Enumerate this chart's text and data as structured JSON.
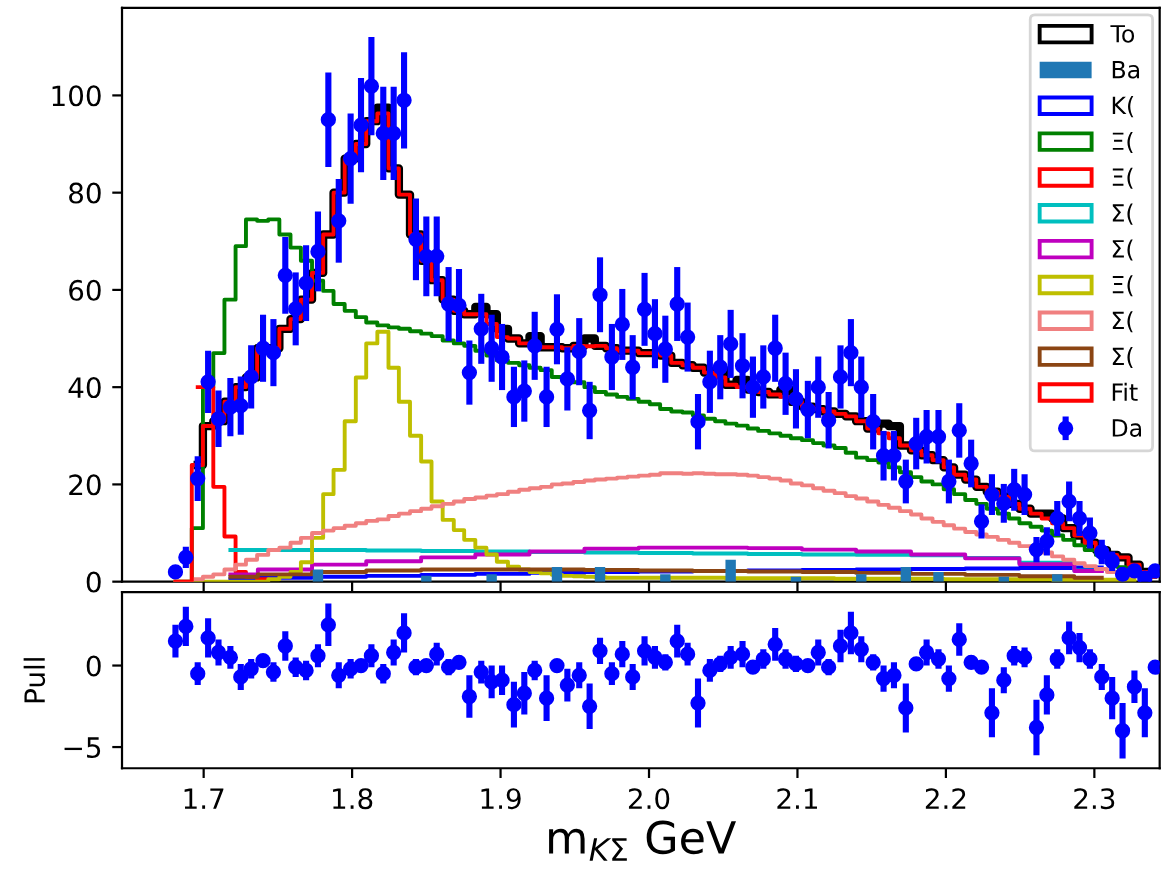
{
  "chart_data": [
    {
      "type": "step",
      "xlim": [
        1.645,
        2.344
      ],
      "ylim": [
        0,
        118
      ],
      "xticks": [
        1.7,
        1.8,
        1.9,
        2.0,
        2.1,
        2.2,
        2.3
      ],
      "yticks": [
        0,
        20,
        40,
        60,
        80,
        100
      ],
      "tick_labels": "y",
      "legend": "top right",
      "x": [
        1.681,
        1.688,
        1.696,
        1.703,
        1.71,
        1.718,
        1.725,
        1.732,
        1.74,
        1.747,
        1.755,
        1.762,
        1.769,
        1.777,
        1.784,
        1.791,
        1.799,
        1.806,
        1.813,
        1.821,
        1.828,
        1.835,
        1.843,
        1.85,
        1.857,
        1.865,
        1.872,
        1.879,
        1.887,
        1.894,
        1.901,
        1.909,
        1.916,
        1.923,
        1.931,
        1.938,
        1.945,
        1.953,
        1.96,
        1.967,
        1.975,
        1.982,
        1.989,
        1.997,
        2.004,
        2.011,
        2.019,
        2.026,
        2.033,
        2.041,
        2.048,
        2.055,
        2.063,
        2.07,
        2.077,
        2.085,
        2.092,
        2.099,
        2.107,
        2.114,
        2.121,
        2.129,
        2.136,
        2.143,
        2.151,
        2.158,
        2.165,
        2.173,
        2.18,
        2.187,
        2.195,
        2.202,
        2.209,
        2.217,
        2.224,
        2.231,
        2.239,
        2.246,
        2.253,
        2.261,
        2.268,
        2.275,
        2.283,
        2.29,
        2.297,
        2.305,
        2.312,
        2.319,
        2.327,
        2.334,
        2.341
      ],
      "series": [
        {
          "name": "To",
          "type": "step",
          "color": "#000000",
          "values": [
            null,
            null,
            24,
            32,
            33,
            37,
            40,
            42,
            48,
            48,
            52,
            54,
            58,
            63.5,
            71.4,
            80,
            87,
            90,
            94.7,
            97.5,
            85,
            79.6,
            71.4,
            66,
            62,
            58,
            55.7,
            55,
            56.5,
            55,
            52,
            50,
            49,
            50.5,
            48.2,
            48.2,
            48,
            48.5,
            50,
            48.5,
            48,
            47.5,
            47.5,
            47,
            47,
            46.5,
            45,
            44.5,
            44,
            43,
            43.5,
            40.5,
            41.5,
            39.5,
            39,
            38.5,
            39.5,
            37,
            36,
            35.5,
            35,
            34.5,
            34,
            33,
            31.5,
            32.5,
            32,
            28,
            27,
            26,
            25,
            23.5,
            22,
            21,
            19.5,
            18.5,
            17.5,
            16,
            15,
            14,
            14,
            13,
            11,
            9.5,
            8,
            6.5,
            5.5,
            5,
            3.5,
            2,
            null
          ]
        },
        {
          "name": "Ba",
          "type": "bar",
          "color": "#1f77b4",
          "x": [
            1.777,
            1.85,
            1.894,
            1.938,
            1.967,
            2.011,
            2.055,
            2.099,
            2.143,
            2.173,
            2.195,
            2.239,
            2.275
          ],
          "values": [
            2.5,
            1.2,
            1.5,
            3,
            3,
            1.5,
            4.5,
            1,
            1.5,
            3,
            2,
            1,
            1.5
          ]
        },
        {
          "name": "K(",
          "type": "step",
          "color": "#0000ff",
          "x": [
            1.718,
            1.755,
            1.791,
            1.828,
            1.865,
            1.901,
            1.938,
            1.975,
            2.011,
            2.048,
            2.085,
            2.121,
            2.158,
            2.195,
            2.231,
            2.268,
            2.305
          ],
          "values": [
            0.5,
            0.8,
            1,
            1.2,
            1.4,
            1.6,
            1.8,
            2,
            2.1,
            2.2,
            2.3,
            2.4,
            2.5,
            2.6,
            2.7,
            2.8,
            2.9
          ]
        },
        {
          "name": "Ξ(",
          "type": "step",
          "color": "#008000",
          "values": [
            0,
            0,
            11,
            40,
            47,
            58,
            69,
            74.5,
            74.2,
            74.5,
            71.4,
            68.7,
            66,
            61.9,
            59.8,
            57.1,
            55.7,
            54.4,
            53.3,
            52.7,
            52.3,
            52,
            51.5,
            51,
            50.5,
            49.6,
            49,
            48.5,
            47.5,
            46.5,
            45.5,
            45,
            44.5,
            44,
            43.5,
            42.1,
            41.5,
            41,
            40,
            39,
            38.5,
            38,
            37.6,
            37,
            36.5,
            35.5,
            35,
            34.8,
            34.2,
            33.5,
            33,
            32.5,
            32.1,
            31.5,
            31,
            30.5,
            30,
            29.5,
            29.1,
            28.5,
            28,
            27.5,
            26.5,
            25.5,
            25,
            24.5,
            23.5,
            22.5,
            21.5,
            20.6,
            20,
            19,
            18,
            16.8,
            16,
            15,
            14,
            13,
            12,
            11.3,
            10.5,
            9.5,
            8.6,
            7.5,
            6.5,
            5.5,
            3.8,
            3,
            2,
            1.5,
            1
          ]
        },
        {
          "name": "Ξ(",
          "type": "step",
          "color": "#ff0000",
          "x": [
            1.696,
            1.703,
            1.71,
            1.718,
            1.725,
            1.732,
            1.74,
            1.747
          ],
          "values": [
            40,
            40,
            19.5,
            9.3,
            2,
            1,
            0.5,
            0.3
          ]
        },
        {
          "name": "Σ(",
          "type": "step",
          "color": "#00bfbf",
          "x": [
            1.718,
            1.755,
            1.791,
            1.828,
            1.865,
            1.901,
            1.938,
            1.975,
            2.011,
            2.048,
            2.085,
            2.121,
            2.158,
            2.195,
            2.231,
            2.268,
            2.305
          ],
          "values": [
            6.5,
            6.5,
            6.5,
            6.4,
            6.3,
            6.2,
            6.1,
            6,
            5.9,
            5.8,
            5.7,
            5.6,
            5.5,
            5.4,
            4.9,
            3.9,
            2.3
          ]
        },
        {
          "name": "Σ(",
          "type": "step",
          "color": "#bf00bf",
          "x": [
            1.718,
            1.755,
            1.791,
            1.828,
            1.865,
            1.901,
            1.938,
            1.975,
            2.011,
            2.048,
            2.085,
            2.121,
            2.158,
            2.195,
            2.231,
            2.268,
            2.305
          ],
          "values": [
            1.5,
            2.5,
            3.5,
            4.2,
            5,
            5.6,
            6.2,
            6.8,
            7,
            7,
            6.9,
            6.6,
            6.2,
            5.6,
            4.8,
            3.6,
            2.2
          ]
        },
        {
          "name": "Ξ(",
          "type": "step",
          "color": "#bfbf00",
          "values": [
            0,
            0,
            0,
            0,
            0,
            0,
            0,
            0,
            0,
            0.5,
            1,
            2,
            4,
            9,
            18,
            23,
            33,
            42,
            49,
            51.4,
            44,
            37,
            30,
            24.7,
            16.5,
            12.7,
            10.6,
            8.6,
            7,
            5.6,
            4.1,
            3.1,
            2.5,
            2,
            1.7,
            1.4,
            1.2,
            1.1,
            1,
            0.9,
            0.8,
            0.8,
            0.8,
            0.8,
            0.8,
            0.8,
            0.8,
            0.8,
            0.8,
            0.8,
            0.8,
            0.7,
            0.7,
            0.7,
            0.7,
            0.7,
            0.7,
            0.7,
            0.7,
            0.7,
            0.7,
            0.6,
            0.6,
            0.6,
            0.6,
            0.6,
            0.6,
            0.6,
            0.6,
            0.6,
            0.6,
            0.5,
            0.5,
            0.5,
            0.5,
            0.5,
            0.5,
            0.5,
            0.5,
            0.5,
            0.5,
            0.4,
            0.4,
            0.4,
            0.4,
            0.4,
            0.4,
            0.4,
            0.4,
            null,
            null
          ]
        },
        {
          "name": "Σ(",
          "type": "step",
          "color": "#f08080",
          "values": [
            0,
            0,
            0.5,
            1,
            1.5,
            2.5,
            3.5,
            4.5,
            5.5,
            6.5,
            7,
            8,
            9,
            10,
            10.5,
            11,
            11.5,
            12,
            12.5,
            12.8,
            13.5,
            14,
            14.5,
            15,
            15.5,
            16,
            16.5,
            17,
            17.3,
            17.7,
            18,
            18.5,
            18.9,
            19.2,
            19.5,
            20,
            20.2,
            20.5,
            20.8,
            21,
            21.2,
            21.4,
            21.6,
            21.8,
            22,
            22.3,
            22.3,
            22.2,
            22.3,
            22.2,
            22.1,
            22.1,
            22,
            21.8,
            21.5,
            21.2,
            20.8,
            20.2,
            19.8,
            19.2,
            18.7,
            18.2,
            17.6,
            17.1,
            16.5,
            15.8,
            15.2,
            14.5,
            13.8,
            13,
            12.3,
            11.6,
            10.9,
            10.2,
            9.7,
            9.2,
            8.6,
            8,
            7.3,
            6.6,
            6,
            5.2,
            4.5,
            3.8,
            3.2,
            2.6,
            2,
            1.6,
            1.1,
            null,
            null
          ]
        },
        {
          "name": "Σ(",
          "type": "step",
          "color": "#8b4513",
          "x": [
            1.718,
            1.755,
            1.791,
            1.828,
            1.865,
            1.901,
            1.938,
            1.975,
            2.011,
            2.048,
            2.085,
            2.121,
            2.158,
            2.195,
            2.231,
            2.268,
            2.305
          ],
          "values": [
            1,
            1.5,
            2,
            2.3,
            2.5,
            2.5,
            2.5,
            2.4,
            2.3,
            2.2,
            2.1,
            2,
            1.8,
            1.6,
            1.4,
            1.1,
            0.8
          ]
        },
        {
          "name": "Fit",
          "type": "step",
          "color": "#ff0000",
          "values": [
            0,
            0,
            24,
            32,
            33,
            37,
            40,
            42,
            48,
            48,
            52,
            54,
            58,
            63.5,
            71.4,
            80,
            87,
            90,
            94.7,
            96.3,
            85,
            79.6,
            71.4,
            66,
            62,
            58,
            55.7,
            55,
            55,
            53,
            50.3,
            50,
            49,
            48.5,
            48.2,
            48.2,
            48,
            48.5,
            48.4,
            48.5,
            48,
            47.5,
            47.5,
            47,
            47,
            46.5,
            45,
            44.5,
            44,
            43,
            42,
            40.5,
            40,
            39.5,
            39,
            38.5,
            38,
            37,
            36,
            35.5,
            35,
            34.5,
            34,
            33,
            31.5,
            30.5,
            29.5,
            28,
            27,
            26,
            25,
            23.5,
            22,
            21,
            19.5,
            18.5,
            17.5,
            16,
            15,
            14,
            13,
            12,
            11,
            9.5,
            8,
            6.5,
            5.5,
            5,
            3.5,
            2,
            1
          ]
        },
        {
          "name": "Da",
          "type": "scatter",
          "color": "#0000ff",
          "marker": "circle",
          "values": [
            2.0,
            5.0,
            21.2,
            41.1,
            33.5,
            35.9,
            36.2,
            42.1,
            48.0,
            47.1,
            63.0,
            56.1,
            61.4,
            67.9,
            95.0,
            74.2,
            87.0,
            93.9,
            101.9,
            92.2,
            92.2,
            99.0,
            70.4,
            66.9,
            66.9,
            57.1,
            56.8,
            43.0,
            52.0,
            48.0,
            46.2,
            38.0,
            39.2,
            48.5,
            38.0,
            51.9,
            41.7,
            47.3,
            35.2,
            59.0,
            46.2,
            52.9,
            44.1,
            56.0,
            51.0,
            47.8,
            57.1,
            50.3,
            32.9,
            41.1,
            44.1,
            48.9,
            44.4,
            40.0,
            42.1,
            48.0,
            40.7,
            37.6,
            35.4,
            40.0,
            33.2,
            42.1,
            47.1,
            40.0,
            32.9,
            25.9,
            25.9,
            20.6,
            28.4,
            29.8,
            29.8,
            20.6,
            31.1,
            24.3,
            12.4,
            17.9,
            16.1,
            18.9,
            17.9,
            6.6,
            8.3,
            13.0,
            16.5,
            13.0,
            10.0,
            6.1,
            4.2,
            1.5,
            2.2,
            0.7,
            2.2
          ],
          "errors": [
            null,
            2.2,
            4.6,
            6.4,
            5.8,
            6,
            6,
            6.5,
            6.9,
            6.9,
            7.9,
            7.5,
            7.8,
            8.2,
            9.7,
            8.6,
            9.3,
            9.7,
            10.1,
            9.6,
            9.6,
            9.9,
            8.4,
            8.2,
            8.2,
            7.6,
            7.5,
            6.6,
            7.2,
            6.9,
            6.8,
            6.2,
            6.3,
            7,
            6.2,
            7.2,
            6.5,
            6.9,
            5.9,
            7.7,
            6.8,
            7.3,
            6.6,
            7.5,
            7.1,
            6.9,
            7.6,
            7.1,
            5.7,
            6.4,
            6.6,
            7,
            6.7,
            6.3,
            6.5,
            6.9,
            6.4,
            6.1,
            5.9,
            6.3,
            5.8,
            6.5,
            6.9,
            6.3,
            5.7,
            5.1,
            5.1,
            4.5,
            5.3,
            5.5,
            5.5,
            4.5,
            5.6,
            4.9,
            3.5,
            4.2,
            4,
            4.3,
            4.2,
            2.6,
            2.9,
            3.6,
            4.1,
            3.6,
            3.2,
            2.5,
            2,
            1.2,
            null,
            null,
            null
          ]
        }
      ]
    },
    {
      "type": "scatter",
      "xlim": [
        1.645,
        2.344
      ],
      "ylim": [
        -6.3,
        4.5
      ],
      "xticks": [
        1.7,
        1.8,
        1.9,
        {
          "value": 2.0,
          "label": "2.0"
        },
        2.1,
        2.2,
        2.3
      ],
      "yticks": [
        {
          "value": -5,
          "label": "−5"
        },
        0
      ],
      "xlabel": "m$_{KΣ}$ GeV",
      "ylabel": "Pull",
      "marker": "circle",
      "x": [
        1.681,
        1.688,
        1.696,
        1.703,
        1.71,
        1.718,
        1.725,
        1.732,
        1.74,
        1.747,
        1.755,
        1.762,
        1.769,
        1.777,
        1.784,
        1.791,
        1.799,
        1.806,
        1.813,
        1.821,
        1.828,
        1.835,
        1.843,
        1.85,
        1.857,
        1.865,
        1.872,
        1.879,
        1.887,
        1.894,
        1.901,
        1.909,
        1.916,
        1.923,
        1.931,
        1.938,
        1.945,
        1.953,
        1.96,
        1.967,
        1.975,
        1.982,
        1.989,
        1.997,
        2.004,
        2.011,
        2.019,
        2.026,
        2.033,
        2.041,
        2.048,
        2.055,
        2.063,
        2.07,
        2.077,
        2.085,
        2.092,
        2.099,
        2.107,
        2.114,
        2.121,
        2.129,
        2.136,
        2.143,
        2.151,
        2.158,
        2.165,
        2.173,
        2.18,
        2.187,
        2.195,
        2.202,
        2.209,
        2.217,
        2.224,
        2.231,
        2.239,
        2.246,
        2.253,
        2.261,
        2.268,
        2.275,
        2.283,
        2.29,
        2.297,
        2.305,
        2.312,
        2.319,
        2.327,
        2.334,
        2.341
      ],
      "series": [
        {
          "color": "#0000ff",
          "values": [
            1.5,
            2.4,
            -0.5,
            1.7,
            0.8,
            0.5,
            -0.7,
            -0.2,
            0.3,
            -0.4,
            1.2,
            -0.1,
            -0.3,
            0.6,
            2.5,
            -0.6,
            -0.2,
            0,
            0.6,
            -0.5,
            0.8,
            2.0,
            -0.1,
            0,
            0.7,
            -0.1,
            0.2,
            -1.9,
            -0.4,
            -1.0,
            -0.9,
            -2.4,
            -1.7,
            -0.3,
            -2.0,
            0,
            -1.2,
            -0.6,
            -2.5,
            0.9,
            -0.5,
            0.7,
            -0.7,
            0.9,
            0.5,
            0.2,
            1.5,
            0.7,
            -2.3,
            -0.3,
            0.1,
            0.5,
            0.7,
            -0.1,
            0.4,
            1.3,
            0.4,
            0.1,
            0,
            0.8,
            -0.1,
            1.2,
            2.0,
            1.0,
            0.2,
            -0.8,
            -0.6,
            -2.6,
            0.1,
            0.8,
            0.4,
            -0.8,
            1.6,
            0.2,
            -0.1,
            -2.9,
            -0.9,
            0.6,
            0.5,
            -3.8,
            -1.8,
            0.4,
            1.7,
            1.1,
            0.4,
            -0.7,
            -2.0,
            -4.0,
            -1.3,
            -2.9,
            -0.1
          ],
          "errors": [
            1,
            1.2,
            0.7,
            1.2,
            0.8,
            0.7,
            0.8,
            0.6,
            0.4,
            0.6,
            0.9,
            0.6,
            0.6,
            0.7,
            1.3,
            0.8,
            0.6,
            0.4,
            0.7,
            0.6,
            0.8,
            1.2,
            0.5,
            0.4,
            0.7,
            0.5,
            0.4,
            1.3,
            0.7,
            1,
            0.9,
            1.4,
            1.3,
            0.6,
            1.4,
            0.3,
            1,
            0.8,
            1.4,
            0.8,
            0.7,
            0.8,
            0.8,
            0.9,
            0.7,
            0.5,
            1,
            0.7,
            1.5,
            0.7,
            0.5,
            0.7,
            0.8,
            0.4,
            0.6,
            1,
            0.6,
            0.5,
            0.4,
            0.8,
            0.5,
            1,
            1.3,
            0.8,
            0.5,
            0.8,
            0.8,
            1.5,
            0.4,
            0.8,
            0.6,
            0.8,
            1,
            0.4,
            0.4,
            1.5,
            0.8,
            0.6,
            0.6,
            1.7,
            1.2,
            0.6,
            1,
            0.9,
            0.6,
            0.8,
            1.3,
            1.7,
            1,
            1.5,
            0.3
          ]
        }
      ]
    }
  ]
}
